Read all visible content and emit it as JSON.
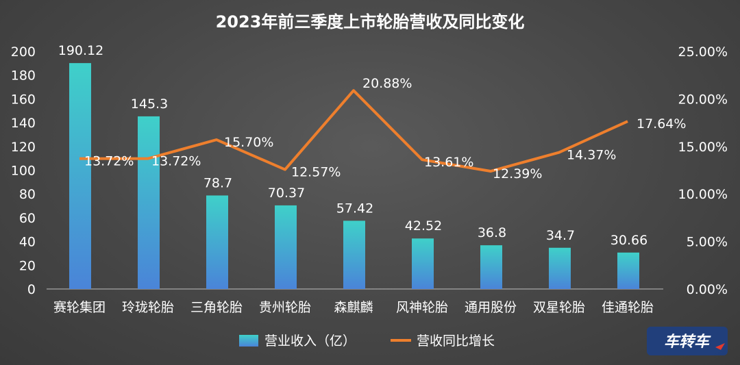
{
  "chart_data": {
    "type": "bar+line",
    "title": "2023年前三季度上市轮胎营收及同比变化",
    "categories": [
      "赛轮集团",
      "玲珑轮胎",
      "三角轮胎",
      "贵州轮胎",
      "森麒麟",
      "风神轮胎",
      "通用股份",
      "双星轮胎",
      "佳通轮胎"
    ],
    "series": [
      {
        "name": "营业收入（亿）",
        "type": "bar",
        "axis": "left",
        "color": "#3fd0c9",
        "color_bottom": "#4a84d8",
        "values": [
          190.12,
          145.3,
          78.7,
          70.37,
          57.42,
          42.52,
          36.8,
          34.7,
          30.66
        ],
        "labels": [
          "190.12",
          "145.3",
          "78.7",
          "70.37",
          "57.42",
          "42.52",
          "36.8",
          "34.7",
          "30.66"
        ]
      },
      {
        "name": "营收同比增长",
        "type": "line",
        "axis": "right",
        "color": "#ee7f2d",
        "values": [
          13.72,
          13.72,
          15.7,
          12.57,
          20.88,
          13.61,
          12.39,
          14.37,
          17.64
        ],
        "labels": [
          "13.72%",
          "13.72%",
          "15.70%",
          "12.57%",
          "20.88%",
          "13.61%",
          "12.39%",
          "14.37%",
          "17.64%"
        ]
      }
    ],
    "y_left": {
      "min": 0,
      "max": 200,
      "ticks": [
        "0",
        "20",
        "40",
        "60",
        "80",
        "100",
        "120",
        "140",
        "160",
        "180",
        "200"
      ]
    },
    "y_right": {
      "min": 0,
      "max": 25,
      "ticks": [
        "0.00%",
        "5.00%",
        "10.00%",
        "15.00%",
        "20.00%",
        "25.00%"
      ]
    },
    "grid": false,
    "legend": "bottom-center",
    "text_color": "#ffffff",
    "watermark": "车转车"
  }
}
